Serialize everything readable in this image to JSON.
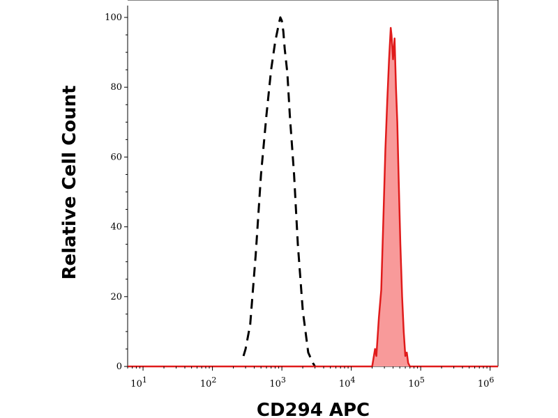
{
  "chart_data": {
    "type": "area",
    "xlabel": "CD294 APC",
    "ylabel": "Relative Cell Count",
    "x_scale": "log",
    "xlim": [
      6,
      1300000
    ],
    "ylim": [
      0,
      100
    ],
    "x_ticks": [
      {
        "base": "10",
        "exp": "1",
        "value": 10
      },
      {
        "base": "10",
        "exp": "2",
        "value": 100
      },
      {
        "base": "10",
        "exp": "3",
        "value": 1000
      },
      {
        "base": "10",
        "exp": "4",
        "value": 10000
      },
      {
        "base": "10",
        "exp": "5",
        "value": 100000
      },
      {
        "base": "10",
        "exp": "6",
        "value": 1000000
      }
    ],
    "y_ticks": [
      "0",
      "20",
      "40",
      "60",
      "80",
      "100"
    ],
    "series": [
      {
        "style": "dashed",
        "color": "#000000",
        "fill": false,
        "x": [
          280,
          300,
          350,
          420,
          500,
          600,
          700,
          800,
          900,
          950,
          1000,
          1050,
          1100,
          1200,
          1300,
          1500,
          1700,
          2000,
          2400,
          2800,
          3000
        ],
        "y": [
          3,
          5,
          12,
          32,
          55,
          72,
          85,
          93,
          98,
          100,
          99,
          96,
          91,
          84,
          72,
          55,
          35,
          16,
          4,
          1,
          0
        ]
      },
      {
        "style": "solid",
        "color": "#e01b1b",
        "fill": true,
        "fill_color": "#f89a9a",
        "x": [
          6,
          20000,
          22000,
          23000,
          25000,
          27000,
          29000,
          31000,
          33000,
          35000,
          37000,
          38000,
          40000,
          42000,
          44000,
          46000,
          48000,
          51000,
          54000,
          57000,
          60000,
          63000,
          66000,
          70000,
          1300000
        ],
        "y": [
          0,
          0,
          5,
          3,
          14,
          22,
          42,
          62,
          76,
          88,
          97,
          95,
          88,
          94,
          80,
          70,
          55,
          35,
          20,
          10,
          3,
          4,
          1,
          0,
          0
        ]
      }
    ]
  }
}
